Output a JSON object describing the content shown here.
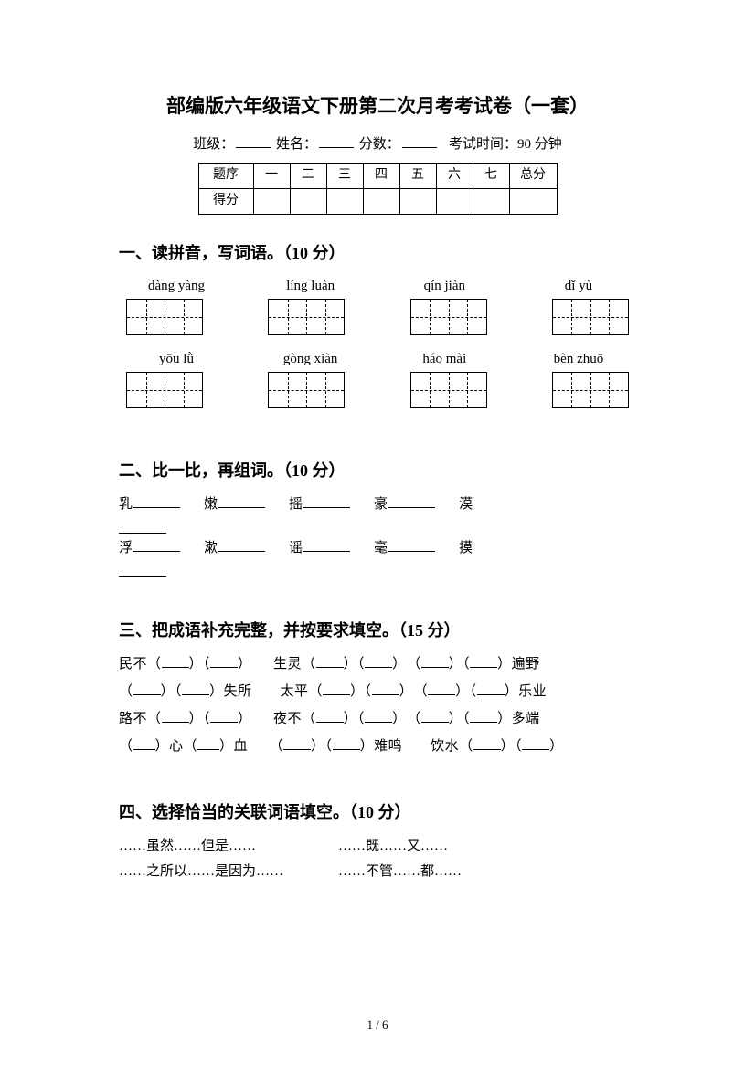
{
  "title": "部编版六年级语文下册第二次月考考试卷（一套）",
  "header": {
    "class_label": "班级：",
    "name_label": "姓名：",
    "score_label": "分数：",
    "time_label": "考试时间：90 分钟"
  },
  "score_table": {
    "row1_label": "题序",
    "columns": [
      "一",
      "二",
      "三",
      "四",
      "五",
      "六",
      "七"
    ],
    "total_label": "总分",
    "row2_label": "得分"
  },
  "section1": {
    "title": "一、读拼音，写词语。（10 分）",
    "row1": [
      "dàng yàng",
      "líng luàn",
      "qín jiàn",
      "dǐ yù"
    ],
    "row2": [
      "yōu   lǜ",
      "gòng xiàn",
      "háo mài",
      "bèn zhuō"
    ]
  },
  "section2": {
    "title": "二、比一比，再组词。（10 分）",
    "row1": [
      "乳",
      "嫩",
      "摇",
      "豪",
      "漠"
    ],
    "row2": [
      "浮",
      "漱",
      "谣",
      "毫",
      "摸"
    ]
  },
  "section3": {
    "title": "三、把成语补充完整，并按要求填空。（15 分）",
    "lines": [
      {
        "parts": [
          "民不（",
          "）（",
          "）　　生灵（",
          "）（",
          "）　（",
          "）（",
          "）遍野"
        ]
      },
      {
        "parts": [
          "（",
          "）（",
          "）失所　　太平（",
          "）（",
          "）　（",
          "）（",
          "）乐业"
        ]
      },
      {
        "parts": [
          "路不（",
          "）（",
          "）　　夜不（",
          "）（",
          "）　（",
          "）（",
          "）多端"
        ]
      },
      {
        "parts": [
          "（",
          "）心（",
          "）血　　（",
          "）（",
          "）难鸣　　饮水（",
          "）（",
          "）"
        ]
      }
    ]
  },
  "section4": {
    "title": "四、选择恰当的关联词语填空。（10 分）",
    "options": [
      [
        "……虽然……但是……",
        "……既……又……"
      ],
      [
        "……之所以……是因为……",
        "……不管……都……"
      ]
    ]
  },
  "footer": "1 / 6"
}
